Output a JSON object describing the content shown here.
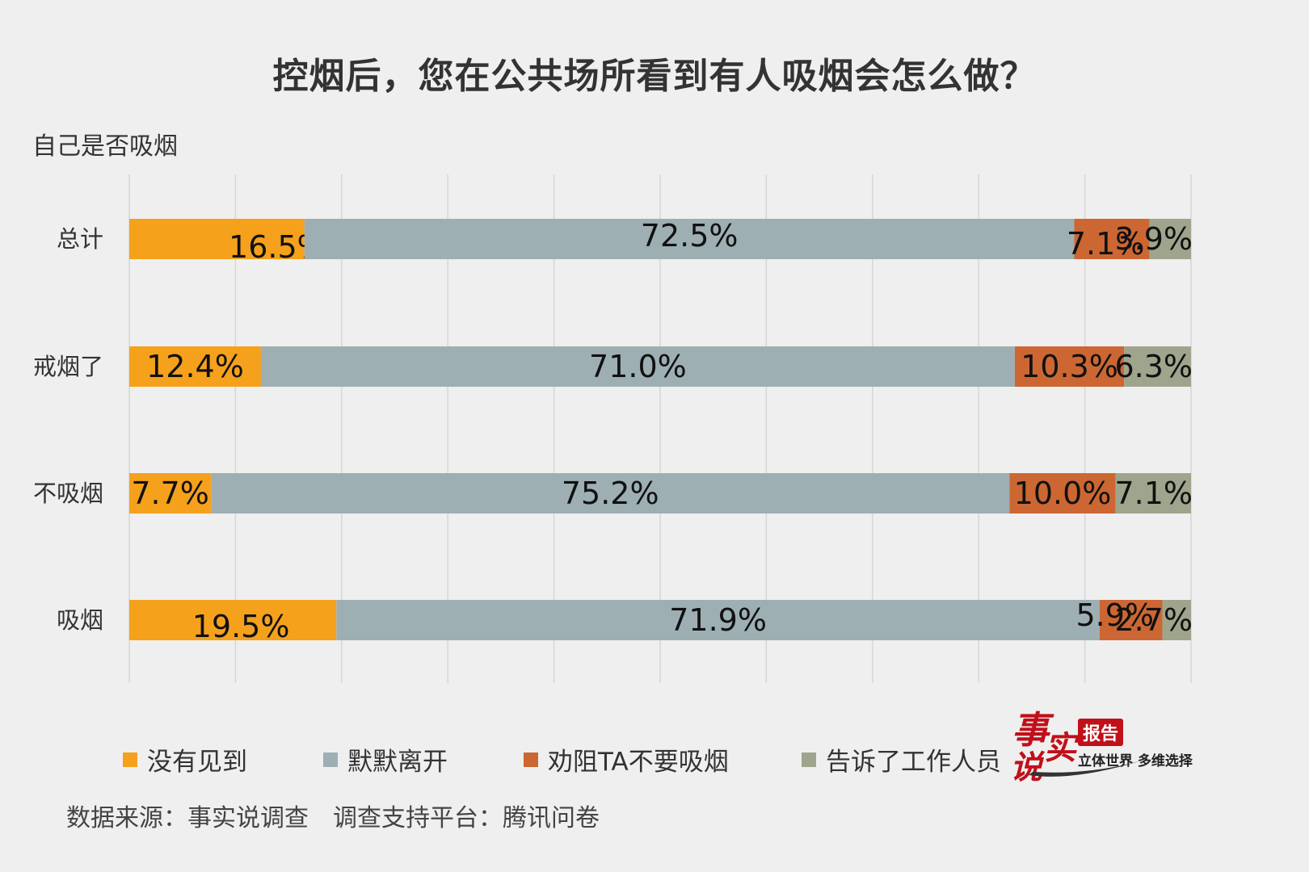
{
  "title": "控烟后，您在公共场所看到有人吸烟会怎么做？",
  "group_label": "自己是否吸烟",
  "source": "数据来源：事实说调查　调查支持平台：腾讯问卷",
  "logo": {
    "char1": "事",
    "char2": "实",
    "char3": "说",
    "badge": "报告",
    "slogan": "立体世界 多维选择"
  },
  "colors": {
    "没有见到": "#f5a11c",
    "默默离开": "#9eafb4",
    "劝阻TA不要吸烟": "#cc6733",
    "告诉了工作人员": "#9fa58d"
  },
  "chart_data": {
    "type": "bar",
    "orientation": "horizontal",
    "stacked": true,
    "categories": [
      "总计",
      "戒烟了",
      "不吸烟",
      "吸烟"
    ],
    "series": [
      {
        "name": "没有见到",
        "values": [
          16.5,
          12.4,
          7.7,
          19.5
        ],
        "labels": [
          "16.5%",
          "12.4%",
          "7.7%",
          "19.5%"
        ]
      },
      {
        "name": "默默离开",
        "values": [
          72.5,
          71.0,
          75.2,
          71.9
        ],
        "labels": [
          "72.5%",
          "71.0%",
          "75.2%",
          "71.9%"
        ]
      },
      {
        "name": "劝阻TA不要吸烟",
        "values": [
          7.1,
          10.3,
          10.0,
          5.9
        ],
        "labels": [
          "7.1%",
          "10.3%",
          "10.0%",
          "5.9%"
        ]
      },
      {
        "name": "告诉了工作人员",
        "values": [
          3.9,
          6.3,
          7.1,
          2.7
        ],
        "labels": [
          "3.9%",
          "6.3%",
          "7.1%",
          "2.7%"
        ]
      }
    ],
    "xlim": [
      0,
      100
    ],
    "grid": true,
    "legend_position": "bottom"
  }
}
